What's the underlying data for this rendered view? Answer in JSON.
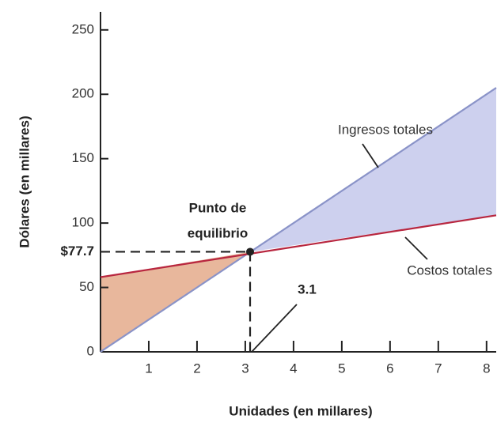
{
  "chart_data": {
    "type": "line",
    "x_label": "Unidades (en millares)",
    "y_label": "Dólares (en millares)",
    "series": [
      {
        "name": "Ingresos totales",
        "color": "#8a93c8",
        "x": [
          0,
          8.2
        ],
        "values": [
          0,
          205
        ]
      },
      {
        "name": "Costos totales",
        "color": "#b8263f",
        "x": [
          0,
          8.2
        ],
        "values": [
          58,
          106
        ]
      }
    ],
    "profit_color": "#cdd0ee",
    "loss_color": "#e8b79c",
    "break_even": {
      "label_lines": [
        "Punto de",
        "equilibrio"
      ],
      "x": 3.1,
      "y": 77.7,
      "y_label": "$77.7"
    },
    "xlim": [
      0,
      8.2
    ],
    "xticks": [
      1,
      2,
      3,
      4,
      5,
      6,
      7,
      8
    ],
    "ylim": [
      0,
      264
    ],
    "yticks": [
      0,
      50,
      100,
      150,
      200,
      250
    ]
  }
}
